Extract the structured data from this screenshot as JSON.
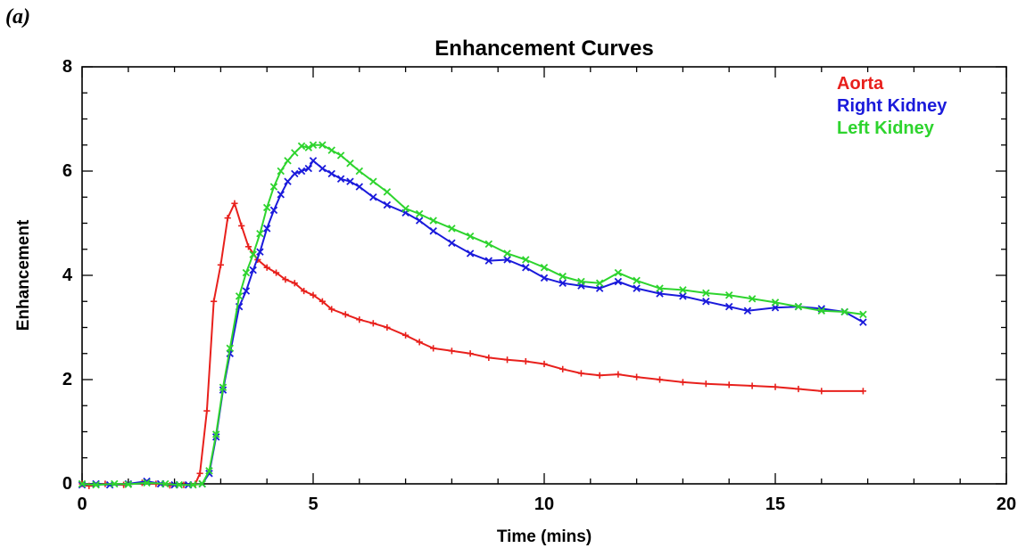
{
  "figure_label": "(a)",
  "chart_data": {
    "type": "line",
    "title": "Enhancement Curves",
    "xlabel": "Time (mins)",
    "ylabel": "Enhancement",
    "xlim": [
      0,
      20
    ],
    "ylim": [
      0,
      8
    ],
    "x_ticks": [
      0,
      5,
      10,
      15,
      20
    ],
    "y_ticks": [
      0,
      2,
      4,
      6,
      8
    ],
    "grid": false,
    "legend_position": "top-right",
    "series": [
      {
        "name": "Aorta",
        "color": "#e8201c",
        "marker": "plus",
        "points": [
          [
            0.0,
            0.0
          ],
          [
            0.15,
            -0.04
          ],
          [
            0.5,
            0.0
          ],
          [
            0.9,
            -0.02
          ],
          [
            1.3,
            0.02
          ],
          [
            1.6,
            0.0
          ],
          [
            1.9,
            -0.03
          ],
          [
            2.2,
            -0.02
          ],
          [
            2.45,
            0.0
          ],
          [
            2.55,
            0.2
          ],
          [
            2.7,
            1.4
          ],
          [
            2.85,
            3.5
          ],
          [
            3.0,
            4.2
          ],
          [
            3.15,
            5.1
          ],
          [
            3.3,
            5.38
          ],
          [
            3.45,
            4.95
          ],
          [
            3.6,
            4.55
          ],
          [
            3.8,
            4.3
          ],
          [
            4.0,
            4.15
          ],
          [
            4.2,
            4.05
          ],
          [
            4.4,
            3.92
          ],
          [
            4.6,
            3.85
          ],
          [
            4.8,
            3.7
          ],
          [
            5.0,
            3.62
          ],
          [
            5.2,
            3.5
          ],
          [
            5.4,
            3.35
          ],
          [
            5.7,
            3.25
          ],
          [
            6.0,
            3.15
          ],
          [
            6.3,
            3.08
          ],
          [
            6.6,
            3.0
          ],
          [
            7.0,
            2.85
          ],
          [
            7.3,
            2.72
          ],
          [
            7.6,
            2.6
          ],
          [
            8.0,
            2.55
          ],
          [
            8.4,
            2.5
          ],
          [
            8.8,
            2.42
          ],
          [
            9.2,
            2.38
          ],
          [
            9.6,
            2.35
          ],
          [
            10.0,
            2.3
          ],
          [
            10.4,
            2.2
          ],
          [
            10.8,
            2.12
          ],
          [
            11.2,
            2.08
          ],
          [
            11.6,
            2.1
          ],
          [
            12.0,
            2.05
          ],
          [
            12.5,
            2.0
          ],
          [
            13.0,
            1.95
          ],
          [
            13.5,
            1.92
          ],
          [
            14.0,
            1.9
          ],
          [
            14.5,
            1.88
          ],
          [
            15.0,
            1.86
          ],
          [
            15.5,
            1.82
          ],
          [
            16.0,
            1.78
          ],
          [
            16.9,
            1.78
          ]
        ]
      },
      {
        "name": "Right Kidney",
        "color": "#1a1adb",
        "marker": "x",
        "points": [
          [
            0.0,
            -0.02
          ],
          [
            0.3,
            0.0
          ],
          [
            0.6,
            -0.02
          ],
          [
            1.0,
            0.0
          ],
          [
            1.4,
            0.05
          ],
          [
            1.7,
            0.0
          ],
          [
            2.0,
            -0.02
          ],
          [
            2.3,
            -0.02
          ],
          [
            2.6,
            0.0
          ],
          [
            2.75,
            0.2
          ],
          [
            2.9,
            0.9
          ],
          [
            3.05,
            1.8
          ],
          [
            3.2,
            2.5
          ],
          [
            3.4,
            3.4
          ],
          [
            3.55,
            3.7
          ],
          [
            3.7,
            4.1
          ],
          [
            3.85,
            4.45
          ],
          [
            4.0,
            4.9
          ],
          [
            4.15,
            5.25
          ],
          [
            4.3,
            5.55
          ],
          [
            4.45,
            5.8
          ],
          [
            4.6,
            5.95
          ],
          [
            4.75,
            6.0
          ],
          [
            4.9,
            6.05
          ],
          [
            5.0,
            6.2
          ],
          [
            5.2,
            6.05
          ],
          [
            5.4,
            5.95
          ],
          [
            5.6,
            5.85
          ],
          [
            5.8,
            5.8
          ],
          [
            6.0,
            5.7
          ],
          [
            6.3,
            5.5
          ],
          [
            6.6,
            5.35
          ],
          [
            7.0,
            5.2
          ],
          [
            7.3,
            5.05
          ],
          [
            7.6,
            4.85
          ],
          [
            8.0,
            4.62
          ],
          [
            8.4,
            4.42
          ],
          [
            8.8,
            4.28
          ],
          [
            9.2,
            4.3
          ],
          [
            9.6,
            4.15
          ],
          [
            10.0,
            3.95
          ],
          [
            10.4,
            3.85
          ],
          [
            10.8,
            3.8
          ],
          [
            11.2,
            3.75
          ],
          [
            11.6,
            3.88
          ],
          [
            12.0,
            3.75
          ],
          [
            12.5,
            3.65
          ],
          [
            13.0,
            3.6
          ],
          [
            13.5,
            3.5
          ],
          [
            14.0,
            3.4
          ],
          [
            14.4,
            3.32
          ],
          [
            15.0,
            3.38
          ],
          [
            15.5,
            3.4
          ],
          [
            16.0,
            3.36
          ],
          [
            16.5,
            3.3
          ],
          [
            16.9,
            3.1
          ]
        ]
      },
      {
        "name": "Left Kidney",
        "color": "#2ed42e",
        "marker": "x",
        "points": [
          [
            0.0,
            0.0
          ],
          [
            0.3,
            -0.02
          ],
          [
            0.7,
            0.0
          ],
          [
            1.0,
            -0.01
          ],
          [
            1.4,
            0.02
          ],
          [
            1.8,
            0.0
          ],
          [
            2.1,
            -0.02
          ],
          [
            2.4,
            -0.02
          ],
          [
            2.6,
            0.0
          ],
          [
            2.75,
            0.25
          ],
          [
            2.9,
            0.95
          ],
          [
            3.05,
            1.85
          ],
          [
            3.2,
            2.6
          ],
          [
            3.4,
            3.6
          ],
          [
            3.55,
            4.05
          ],
          [
            3.7,
            4.4
          ],
          [
            3.85,
            4.8
          ],
          [
            4.0,
            5.3
          ],
          [
            4.15,
            5.7
          ],
          [
            4.3,
            6.0
          ],
          [
            4.45,
            6.2
          ],
          [
            4.6,
            6.35
          ],
          [
            4.75,
            6.48
          ],
          [
            4.9,
            6.45
          ],
          [
            5.0,
            6.5
          ],
          [
            5.2,
            6.5
          ],
          [
            5.4,
            6.4
          ],
          [
            5.6,
            6.3
          ],
          [
            5.8,
            6.15
          ],
          [
            6.0,
            6.0
          ],
          [
            6.3,
            5.8
          ],
          [
            6.6,
            5.6
          ],
          [
            7.0,
            5.28
          ],
          [
            7.3,
            5.18
          ],
          [
            7.6,
            5.05
          ],
          [
            8.0,
            4.9
          ],
          [
            8.4,
            4.75
          ],
          [
            8.8,
            4.6
          ],
          [
            9.2,
            4.42
          ],
          [
            9.6,
            4.3
          ],
          [
            10.0,
            4.15
          ],
          [
            10.4,
            3.98
          ],
          [
            10.8,
            3.88
          ],
          [
            11.2,
            3.85
          ],
          [
            11.6,
            4.05
          ],
          [
            12.0,
            3.9
          ],
          [
            12.5,
            3.75
          ],
          [
            13.0,
            3.72
          ],
          [
            13.5,
            3.66
          ],
          [
            14.0,
            3.62
          ],
          [
            14.5,
            3.55
          ],
          [
            15.0,
            3.48
          ],
          [
            15.5,
            3.4
          ],
          [
            16.0,
            3.32
          ],
          [
            16.5,
            3.3
          ],
          [
            16.9,
            3.25
          ]
        ]
      }
    ]
  }
}
